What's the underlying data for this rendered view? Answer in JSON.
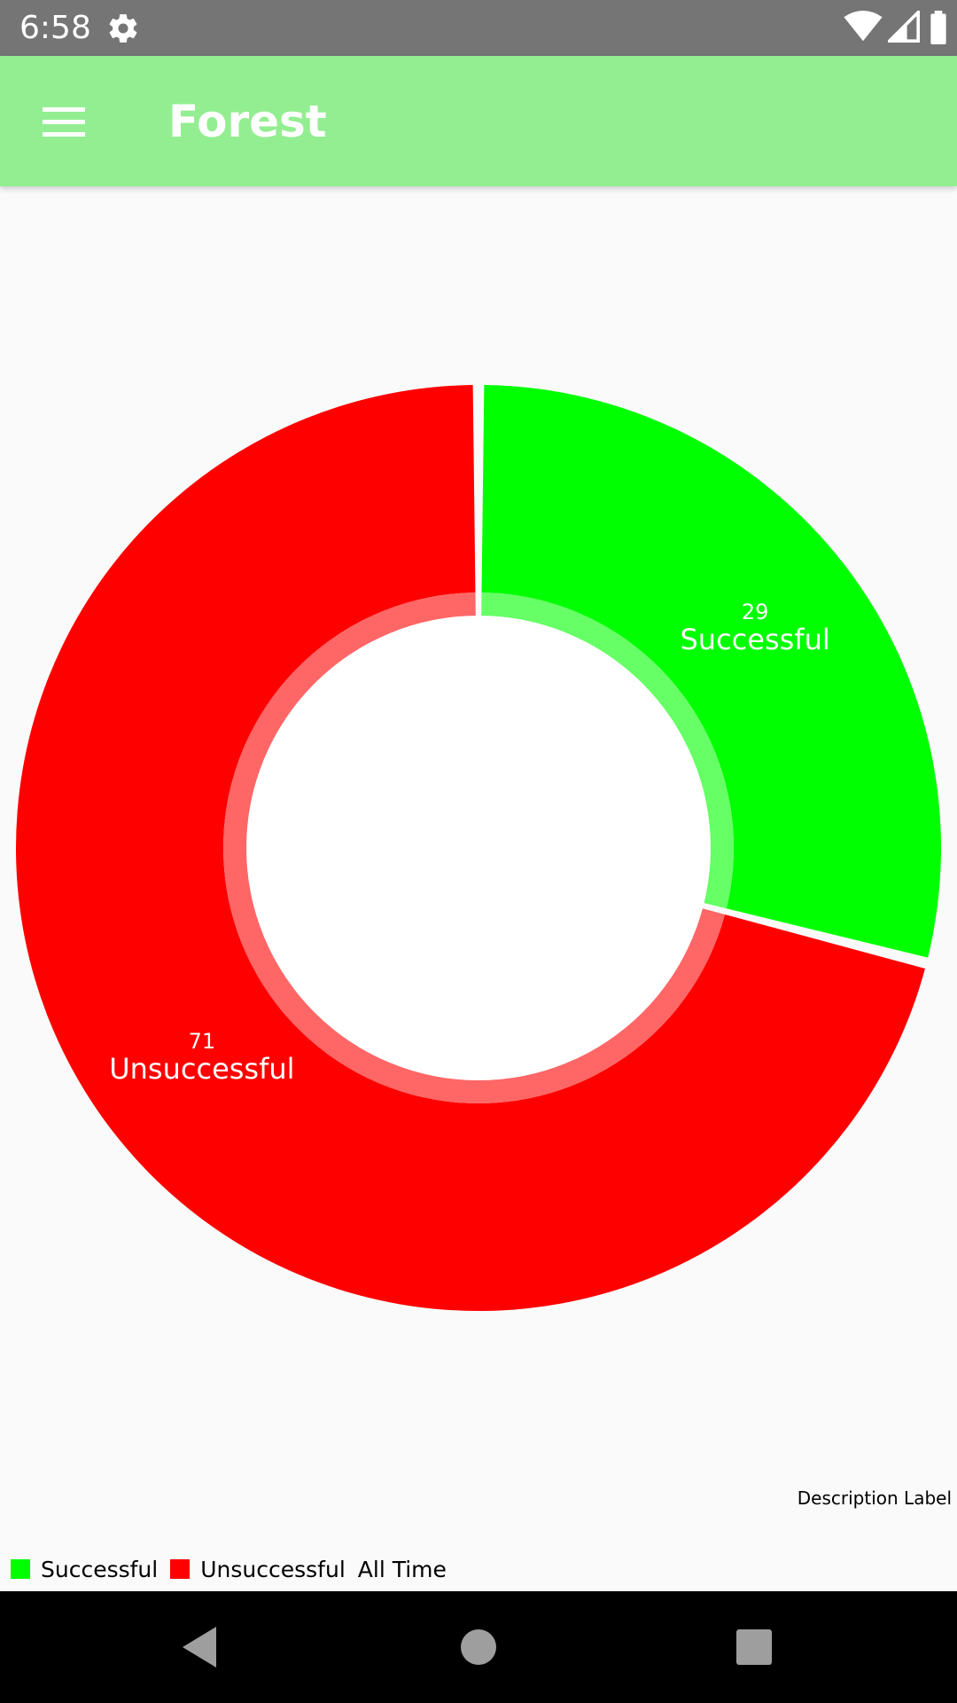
{
  "status_bar": {
    "time": "6:58",
    "icons": [
      "settings-gear-icon",
      "wifi-icon",
      "cell-signal-icon",
      "battery-icon"
    ]
  },
  "app_bar": {
    "menu_icon": "hamburger-menu-icon",
    "title": "Forest"
  },
  "colors": {
    "app_bar": "#93ee91",
    "successful": "#00ff00",
    "unsuccessful": "#ff0000",
    "status_bar": "#757575",
    "nav_bar": "#000000"
  },
  "chart_data": {
    "type": "pie",
    "title": "",
    "hole": true,
    "slices": [
      {
        "label": "Successful",
        "value": 29,
        "color": "#00ff00"
      },
      {
        "label": "Unsuccessful",
        "value": 71,
        "color": "#ff0000"
      }
    ],
    "legend": {
      "placement": "bottom-left",
      "entries": [
        "Successful",
        "Unsuccessful"
      ],
      "label": "All Time"
    },
    "description": "Description Label"
  },
  "nav_bar": {
    "icons": [
      "back-icon",
      "home-icon",
      "recents-icon"
    ]
  }
}
